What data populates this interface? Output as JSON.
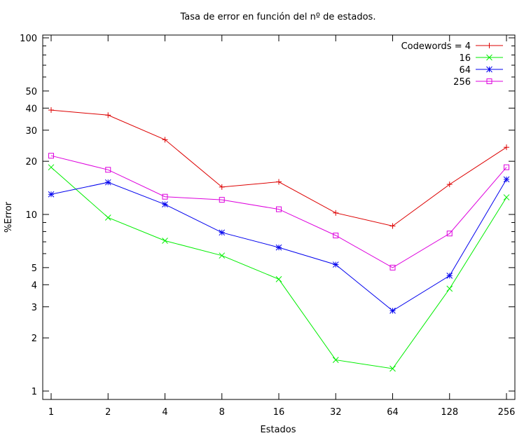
{
  "chart_data": {
    "type": "line",
    "title": "Tasa de error en función del nº de estados.",
    "xlabel": "Estados",
    "ylabel": "%Error",
    "x_scale": "log2",
    "y_scale": "log10",
    "categories": [
      "1",
      "2",
      "4",
      "8",
      "16",
      "32",
      "64",
      "128",
      "256"
    ],
    "x": [
      1,
      2,
      4,
      8,
      16,
      32,
      64,
      128,
      256
    ],
    "y_ticks": [
      1,
      2,
      3,
      4,
      5,
      10,
      20,
      30,
      40,
      50,
      100
    ],
    "y_tick_labels": [
      "1",
      "2",
      "3",
      "4",
      "5",
      "10",
      "20",
      "30",
      "40",
      "50",
      "100"
    ],
    "ylim": [
      0.9,
      110
    ],
    "legend_placement": "top-right",
    "grid": false,
    "series": [
      {
        "name": "Codewords = 4",
        "color": "#dd0000",
        "marker": "plus",
        "values": [
          39,
          36.5,
          26.5,
          14.3,
          15.3,
          10.2,
          8.6,
          14.8,
          24
        ]
      },
      {
        "name": "16",
        "color": "#00ee00",
        "marker": "cross",
        "values": [
          18.5,
          9.6,
          7.1,
          5.85,
          4.3,
          1.5,
          1.34,
          3.8,
          12.5
        ]
      },
      {
        "name": "64",
        "color": "#0000ee",
        "marker": "star",
        "values": [
          13,
          15.2,
          11.4,
          7.9,
          6.5,
          5.2,
          2.85,
          4.5,
          15.8
        ]
      },
      {
        "name": "256",
        "color": "#dd00dd",
        "marker": "square",
        "values": [
          21.5,
          17.9,
          12.6,
          12.1,
          10.7,
          7.6,
          5.0,
          7.8,
          18.5
        ]
      }
    ]
  }
}
